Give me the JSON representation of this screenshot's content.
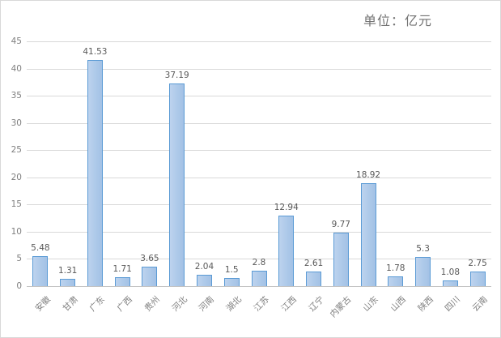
{
  "chart_data": {
    "type": "bar",
    "title": "单位：亿元",
    "categories": [
      "安徽",
      "甘肃",
      "广东",
      "广西",
      "贵州",
      "河北",
      "河南",
      "湖北",
      "江苏",
      "江西",
      "辽宁",
      "内蒙古",
      "山东",
      "山西",
      "陕西",
      "四川",
      "云南"
    ],
    "values": [
      5.48,
      1.31,
      41.53,
      1.71,
      3.65,
      37.19,
      2.04,
      1.5,
      2.8,
      12.94,
      2.61,
      9.77,
      18.92,
      1.78,
      5.3,
      1.08,
      2.75
    ],
    "data_labels": [
      "5.48",
      "1.31",
      "41.53",
      "1.71",
      "3.65",
      "37.19",
      "2.04",
      "1.5",
      "2.8",
      "12.94",
      "2.61",
      "9.77",
      "18.92",
      "1.78",
      "5.3",
      "1.08",
      "2.75"
    ],
    "xlabel": "",
    "ylabel": "",
    "ylim": [
      0,
      45
    ],
    "ytick_step": 5,
    "ytick_labels": [
      "0",
      "5",
      "10",
      "15",
      "20",
      "25",
      "30",
      "35",
      "40",
      "45"
    ],
    "grid": true,
    "legend": "none",
    "colors": {
      "bar_fill": "#adc9e9",
      "bar_border": "#5b9bd5",
      "gridline": "#d9d9d9",
      "axis_line": "#c3c3c3",
      "tick_text": "#7f7f7f",
      "data_label_text": "#595959",
      "title_text": "#737373",
      "background": "#ffffff",
      "chart_border": "#d9d9d9"
    }
  }
}
